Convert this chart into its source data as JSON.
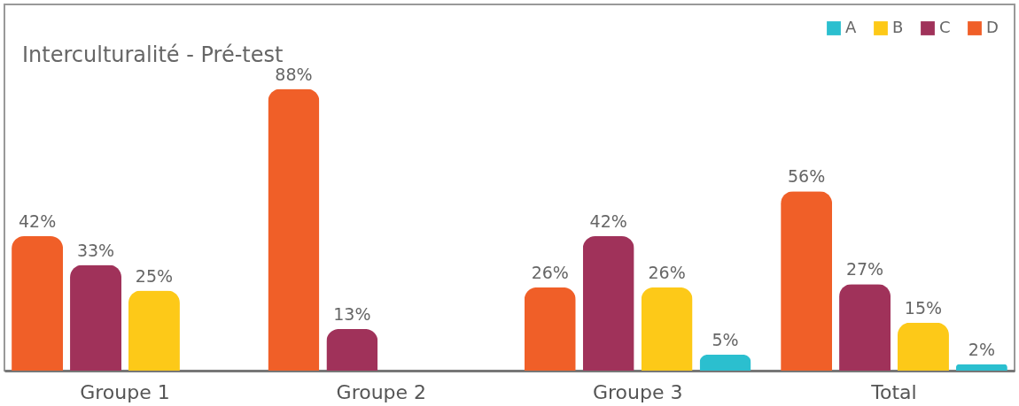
{
  "chart_data": {
    "type": "bar",
    "title": "Interculturalité - Pré-test",
    "categories": [
      "Groupe 1",
      "Groupe 2",
      "Groupe 3",
      "Total"
    ],
    "series": [
      {
        "name": "A",
        "color": "#2bbfcf",
        "values": [
          null,
          null,
          5,
          2
        ],
        "value_labels": [
          null,
          null,
          "5%",
          "2%"
        ]
      },
      {
        "name": "B",
        "color": "#fdc918",
        "values": [
          25,
          null,
          26,
          15
        ],
        "value_labels": [
          "25%",
          null,
          "26%",
          "15%"
        ]
      },
      {
        "name": "C",
        "color": "#a0325a",
        "values": [
          33,
          13,
          42,
          27
        ],
        "value_labels": [
          "33%",
          "13%",
          "42%",
          "27%"
        ]
      },
      {
        "name": "D",
        "color": "#f05f28",
        "values": [
          42,
          88,
          26,
          56
        ],
        "value_labels": [
          "42%",
          "88%",
          "26%",
          "56%"
        ]
      }
    ],
    "legend": "top right",
    "grid": false,
    "tick_labels": "x"
  }
}
